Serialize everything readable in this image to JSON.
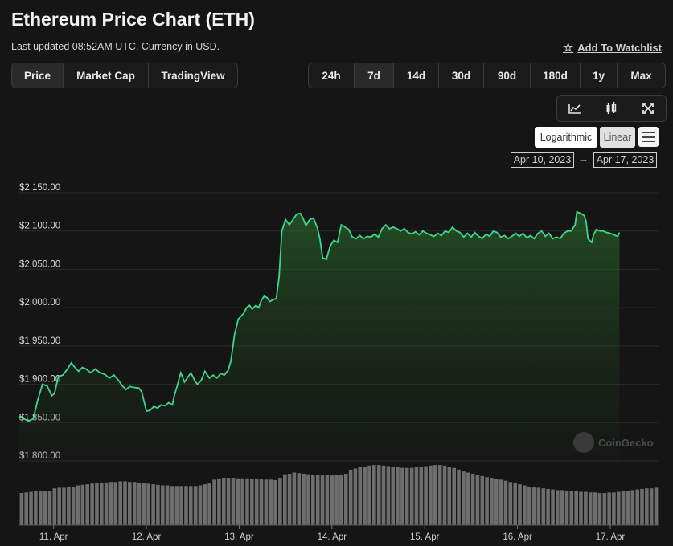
{
  "header": {
    "title": "Ethereum Price Chart (ETH)",
    "subtitle": "Last updated 08:52AM UTC. Currency in USD.",
    "watchlist_label": "Add To Watchlist"
  },
  "view_tabs": [
    {
      "label": "Price",
      "active": true
    },
    {
      "label": "Market Cap",
      "active": false
    },
    {
      "label": "TradingView",
      "active": false
    }
  ],
  "range_tabs": [
    {
      "label": "24h",
      "active": false
    },
    {
      "label": "7d",
      "active": true
    },
    {
      "label": "14d",
      "active": false
    },
    {
      "label": "30d",
      "active": false
    },
    {
      "label": "90d",
      "active": false
    },
    {
      "label": "180d",
      "active": false
    },
    {
      "label": "1y",
      "active": false
    },
    {
      "label": "Max",
      "active": false
    }
  ],
  "chart_tools": [
    "line-chart-icon",
    "candlestick-icon",
    "fullscreen-icon"
  ],
  "scale": {
    "logarithmic_label": "Logarithmic",
    "linear_label": "Linear",
    "selected": "linear"
  },
  "date_range": {
    "from": "Apr 10, 2023",
    "arrow": "→",
    "to": "Apr 17, 2023"
  },
  "watermark": "CoinGecko",
  "colors": {
    "line": "#3dd68c",
    "background": "#151515",
    "volume": "#6e6e6e"
  },
  "chart_data": {
    "type": "area",
    "ylim": [
      1775,
      2160
    ],
    "y_ticks": [
      {
        "label": "$2,150.00",
        "value": 2150
      },
      {
        "label": "$2,100.00",
        "value": 2100
      },
      {
        "label": "$2,050.00",
        "value": 2050
      },
      {
        "label": "$2,000.00",
        "value": 2000
      },
      {
        "label": "$1,950.00",
        "value": 1950
      },
      {
        "label": "$1,900.00",
        "value": 1900
      },
      {
        "label": "$1,850.00",
        "value": 1850
      },
      {
        "label": "$1,800.00",
        "value": 1800
      }
    ],
    "x_ticks": [
      {
        "label": "11. Apr",
        "value": 1.0
      },
      {
        "label": "12. Apr",
        "value": 2.0
      },
      {
        "label": "13. Apr",
        "value": 3.0
      },
      {
        "label": "14. Apr",
        "value": 4.0
      },
      {
        "label": "15. Apr",
        "value": 5.0
      },
      {
        "label": "16. Apr",
        "value": 6.0
      },
      {
        "label": "17. Apr",
        "value": 7.0
      }
    ],
    "xlim": [
      0.63,
      7.52
    ],
    "price": [
      [
        0.63,
        1858
      ],
      [
        0.73,
        1852
      ],
      [
        0.78,
        1855
      ],
      [
        0.83,
        1880
      ],
      [
        0.88,
        1900
      ],
      [
        0.93,
        1898
      ],
      [
        0.98,
        1885
      ],
      [
        1.01,
        1888
      ],
      [
        1.05,
        1910
      ],
      [
        1.1,
        1912
      ],
      [
        1.15,
        1920
      ],
      [
        1.19,
        1928
      ],
      [
        1.23,
        1922
      ],
      [
        1.27,
        1917
      ],
      [
        1.31,
        1922
      ],
      [
        1.35,
        1920
      ],
      [
        1.4,
        1915
      ],
      [
        1.45,
        1920
      ],
      [
        1.5,
        1915
      ],
      [
        1.55,
        1913
      ],
      [
        1.6,
        1908
      ],
      [
        1.65,
        1912
      ],
      [
        1.7,
        1905
      ],
      [
        1.74,
        1898
      ],
      [
        1.78,
        1893
      ],
      [
        1.82,
        1897
      ],
      [
        1.86,
        1896
      ],
      [
        1.92,
        1895
      ],
      [
        1.95,
        1890
      ],
      [
        1.97,
        1880
      ],
      [
        2.0,
        1865
      ],
      [
        2.04,
        1866
      ],
      [
        2.08,
        1871
      ],
      [
        2.12,
        1869
      ],
      [
        2.16,
        1873
      ],
      [
        2.2,
        1872
      ],
      [
        2.24,
        1876
      ],
      [
        2.28,
        1873
      ],
      [
        2.3,
        1885
      ],
      [
        2.33,
        1897
      ],
      [
        2.37,
        1915
      ],
      [
        2.41,
        1903
      ],
      [
        2.45,
        1910
      ],
      [
        2.48,
        1915
      ],
      [
        2.52,
        1905
      ],
      [
        2.55,
        1900
      ],
      [
        2.59,
        1905
      ],
      [
        2.63,
        1917
      ],
      [
        2.68,
        1908
      ],
      [
        2.72,
        1912
      ],
      [
        2.76,
        1908
      ],
      [
        2.8,
        1914
      ],
      [
        2.84,
        1912
      ],
      [
        2.88,
        1918
      ],
      [
        2.91,
        1930
      ],
      [
        2.95,
        1965
      ],
      [
        2.99,
        1985
      ],
      [
        3.03,
        1990
      ],
      [
        3.05,
        1993
      ],
      [
        3.08,
        2000
      ],
      [
        3.11,
        2003
      ],
      [
        3.14,
        1998
      ],
      [
        3.18,
        2003
      ],
      [
        3.21,
        2000
      ],
      [
        3.24,
        2010
      ],
      [
        3.27,
        2015
      ],
      [
        3.3,
        2013
      ],
      [
        3.33,
        2008
      ],
      [
        3.36,
        2010
      ],
      [
        3.4,
        2012
      ],
      [
        3.43,
        2040
      ],
      [
        3.46,
        2100
      ],
      [
        3.5,
        2115
      ],
      [
        3.54,
        2108
      ],
      [
        3.58,
        2115
      ],
      [
        3.62,
        2122
      ],
      [
        3.66,
        2123
      ],
      [
        3.69,
        2116
      ],
      [
        3.72,
        2107
      ],
      [
        3.76,
        2115
      ],
      [
        3.8,
        2117
      ],
      [
        3.84,
        2105
      ],
      [
        3.87,
        2090
      ],
      [
        3.9,
        2065
      ],
      [
        3.94,
        2063
      ],
      [
        3.98,
        2080
      ],
      [
        4.02,
        2088
      ],
      [
        4.06,
        2085
      ],
      [
        4.1,
        2108
      ],
      [
        4.14,
        2105
      ],
      [
        4.18,
        2102
      ],
      [
        4.22,
        2092
      ],
      [
        4.26,
        2090
      ],
      [
        4.3,
        2094
      ],
      [
        4.34,
        2090
      ],
      [
        4.38,
        2093
      ],
      [
        4.42,
        2092
      ],
      [
        4.46,
        2096
      ],
      [
        4.5,
        2092
      ],
      [
        4.54,
        2103
      ],
      [
        4.58,
        2108
      ],
      [
        4.62,
        2103
      ],
      [
        4.66,
        2105
      ],
      [
        4.7,
        2103
      ],
      [
        4.74,
        2100
      ],
      [
        4.78,
        2103
      ],
      [
        4.82,
        2098
      ],
      [
        4.86,
        2096
      ],
      [
        4.9,
        2099
      ],
      [
        4.94,
        2095
      ],
      [
        4.98,
        2100
      ],
      [
        5.02,
        2097
      ],
      [
        5.06,
        2095
      ],
      [
        5.1,
        2093
      ],
      [
        5.14,
        2097
      ],
      [
        5.18,
        2094
      ],
      [
        5.22,
        2100
      ],
      [
        5.26,
        2098
      ],
      [
        5.3,
        2105
      ],
      [
        5.34,
        2100
      ],
      [
        5.38,
        2098
      ],
      [
        5.42,
        2092
      ],
      [
        5.46,
        2097
      ],
      [
        5.5,
        2092
      ],
      [
        5.54,
        2098
      ],
      [
        5.58,
        2093
      ],
      [
        5.62,
        2090
      ],
      [
        5.66,
        2096
      ],
      [
        5.7,
        2093
      ],
      [
        5.74,
        2100
      ],
      [
        5.78,
        2098
      ],
      [
        5.82,
        2092
      ],
      [
        5.86,
        2094
      ],
      [
        5.9,
        2090
      ],
      [
        5.94,
        2093
      ],
      [
        5.98,
        2097
      ],
      [
        6.02,
        2093
      ],
      [
        6.06,
        2097
      ],
      [
        6.1,
        2091
      ],
      [
        6.14,
        2094
      ],
      [
        6.18,
        2090
      ],
      [
        6.22,
        2097
      ],
      [
        6.26,
        2100
      ],
      [
        6.3,
        2093
      ],
      [
        6.34,
        2097
      ],
      [
        6.38,
        2090
      ],
      [
        6.42,
        2092
      ],
      [
        6.46,
        2090
      ],
      [
        6.5,
        2097
      ],
      [
        6.54,
        2100
      ],
      [
        6.58,
        2100
      ],
      [
        6.62,
        2108
      ],
      [
        6.64,
        2125
      ],
      [
        6.68,
        2123
      ],
      [
        6.72,
        2120
      ],
      [
        6.74,
        2112
      ],
      [
        6.76,
        2090
      ],
      [
        6.8,
        2085
      ],
      [
        6.82,
        2095
      ],
      [
        6.85,
        2102
      ],
      [
        6.89,
        2100
      ],
      [
        6.92,
        2100
      ],
      [
        6.96,
        2098
      ],
      [
        7.0,
        2097
      ],
      [
        7.04,
        2095
      ],
      [
        7.08,
        2093
      ],
      [
        7.1,
        2098
      ]
    ],
    "volume_scale": [
      0,
      1
    ],
    "volume": [
      0.55,
      0.56,
      0.57,
      0.58,
      0.58,
      0.58,
      0.59,
      0.63,
      0.64,
      0.64,
      0.65,
      0.66,
      0.68,
      0.69,
      0.7,
      0.71,
      0.72,
      0.72,
      0.73,
      0.74,
      0.74,
      0.75,
      0.75,
      0.74,
      0.74,
      0.72,
      0.72,
      0.71,
      0.7,
      0.69,
      0.68,
      0.68,
      0.67,
      0.67,
      0.67,
      0.67,
      0.67,
      0.67,
      0.68,
      0.7,
      0.72,
      0.78,
      0.8,
      0.81,
      0.81,
      0.81,
      0.8,
      0.8,
      0.8,
      0.79,
      0.79,
      0.79,
      0.78,
      0.78,
      0.77,
      0.81,
      0.87,
      0.88,
      0.9,
      0.89,
      0.88,
      0.87,
      0.86,
      0.86,
      0.85,
      0.86,
      0.85,
      0.86,
      0.86,
      0.88,
      0.95,
      0.97,
      0.99,
      1.0,
      1.02,
      1.03,
      1.03,
      1.02,
      1.01,
      1.0,
      0.99,
      0.98,
      0.98,
      0.98,
      0.99,
      1.0,
      1.01,
      1.02,
      1.03,
      1.03,
      1.02,
      1.0,
      0.98,
      0.95,
      0.92,
      0.9,
      0.88,
      0.86,
      0.84,
      0.82,
      0.81,
      0.79,
      0.78,
      0.76,
      0.74,
      0.72,
      0.7,
      0.68,
      0.66,
      0.65,
      0.64,
      0.63,
      0.62,
      0.61,
      0.6,
      0.6,
      0.59,
      0.58,
      0.58,
      0.57,
      0.57,
      0.56,
      0.56,
      0.55,
      0.55,
      0.56,
      0.56,
      0.57,
      0.58,
      0.59,
      0.6,
      0.61,
      0.62,
      0.63,
      0.63,
      0.64
    ]
  }
}
